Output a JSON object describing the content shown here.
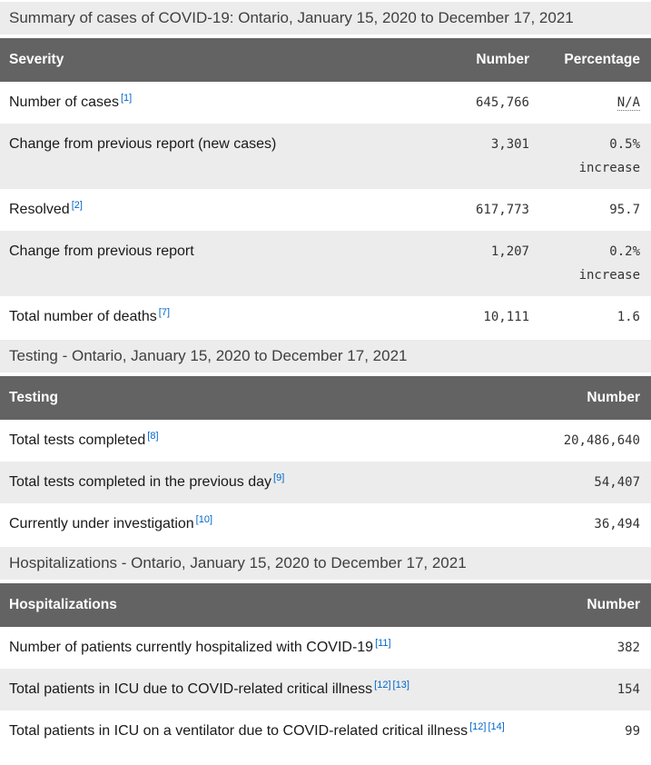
{
  "colors": {
    "header_bg": "#636363",
    "header_text": "#ffffff",
    "stripe_bg": "#ececec",
    "caption_bg": "#ececec",
    "link_blue": "#0066cc",
    "body_text": "#1a1a1a",
    "number_text": "#333333"
  },
  "tables": [
    {
      "caption": "Summary of cases of COVID-19: Ontario, January 15, 2020 to December 17, 2021",
      "columns": [
        "Severity",
        "Number",
        "Percentage"
      ],
      "rows": [
        {
          "label": "Number of cases",
          "refs": [
            "[1]"
          ],
          "number": "645,766",
          "percentage": "N/A"
        },
        {
          "label": "Change from previous report (new cases)",
          "refs": [],
          "number": "3,301",
          "percentage": "0.5%",
          "percentage_note": "increase"
        },
        {
          "label": "Resolved",
          "refs": [
            "[2]"
          ],
          "number": "617,773",
          "percentage": "95.7"
        },
        {
          "label": "Change from previous report",
          "refs": [],
          "number": "1,207",
          "percentage": "0.2%",
          "percentage_note": "increase"
        },
        {
          "label": "Total number of deaths",
          "refs": [
            "[7]"
          ],
          "number": "10,111",
          "percentage": "1.6"
        }
      ]
    },
    {
      "caption": "Testing - Ontario, January 15, 2020 to December 17, 2021",
      "columns": [
        "Testing",
        "Number"
      ],
      "rows": [
        {
          "label": "Total tests completed",
          "refs": [
            "[8]"
          ],
          "number": "20,486,640"
        },
        {
          "label": "Total tests completed in the previous day",
          "refs": [
            "[9]"
          ],
          "number": "54,407"
        },
        {
          "label": "Currently under investigation",
          "refs": [
            "[10]"
          ],
          "number": "36,494"
        }
      ]
    },
    {
      "caption": "Hospitalizations - Ontario, January 15, 2020 to December 17, 2021",
      "columns": [
        "Hospitalizations",
        "Number"
      ],
      "rows": [
        {
          "label": "Number of patients currently hospitalized with COVID-19",
          "refs": [
            "[11]"
          ],
          "number": "382"
        },
        {
          "label": "Total patients in ICU due to COVID-related critical illness",
          "refs": [
            "[12]",
            "[13]"
          ],
          "number": "154"
        },
        {
          "label": "Total patients in ICU on a ventilator due to COVID-related critical illness",
          "refs": [
            "[12]",
            "[14]"
          ],
          "number": "99"
        }
      ]
    }
  ]
}
